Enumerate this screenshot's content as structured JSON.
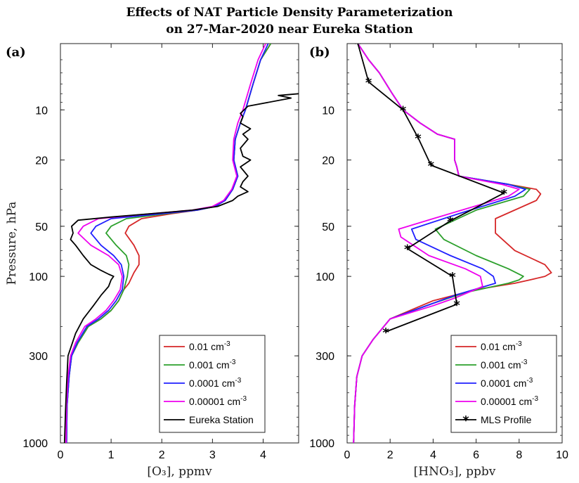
{
  "title_lines": [
    "Effects of NAT Particle Density Parameterization",
    "on 27-Mar-2020 near Eureka Station"
  ],
  "chart_data": [
    {
      "type": "line",
      "panel_label": "(a)",
      "xlabel": "[O₃], ppmv",
      "ylabel": "Pressure, hPa",
      "xlim": [
        0,
        4.7
      ],
      "ylim": [
        1000,
        4
      ],
      "yscale": "log",
      "xticks": [
        "0",
        "1",
        "2",
        "3",
        "4"
      ],
      "xtick_values": [
        0,
        1,
        2,
        3,
        4
      ],
      "yticks": [
        "10",
        "20",
        "50",
        "100",
        "300",
        "1000"
      ],
      "ytick_values": [
        10,
        20,
        50,
        100,
        300,
        1000
      ],
      "grid": false,
      "legend_position": "bottom-right",
      "series": [
        {
          "name": "0.01 cm^-3",
          "color": "#d62728",
          "marker": "none",
          "x": [
            4.15,
            3.95,
            3.8,
            3.65,
            3.55,
            3.45,
            3.42,
            3.5,
            3.4,
            3.25,
            3.05,
            2.7,
            2.2,
            1.6,
            1.35,
            1.28,
            1.45,
            1.55,
            1.55,
            1.45,
            1.35,
            1.25,
            1.15,
            1.0,
            0.8,
            0.55,
            0.35,
            0.22,
            0.17,
            0.13,
            0.12
          ],
          "y": [
            4,
            5,
            7,
            10,
            12,
            15,
            20,
            25,
            30,
            35,
            38,
            40,
            42,
            45,
            50,
            55,
            65,
            75,
            85,
            95,
            110,
            120,
            140,
            160,
            180,
            200,
            250,
            300,
            400,
            600,
            1000
          ]
        },
        {
          "name": "0.001 cm^-3",
          "color": "#2ca02c",
          "marker": "none",
          "x": [
            4.15,
            3.95,
            3.8,
            3.65,
            3.55,
            3.45,
            3.42,
            3.5,
            3.4,
            3.25,
            3.05,
            2.7,
            2.1,
            1.3,
            1.0,
            0.9,
            1.1,
            1.3,
            1.35,
            1.32,
            1.25,
            1.15,
            1.0,
            0.8,
            0.55,
            0.35,
            0.22,
            0.17,
            0.13,
            0.12
          ],
          "y": [
            4,
            5,
            7,
            10,
            12,
            15,
            20,
            25,
            30,
            35,
            38,
            40,
            42,
            45,
            50,
            55,
            65,
            75,
            85,
            100,
            120,
            140,
            160,
            180,
            200,
            250,
            300,
            400,
            600,
            1000
          ]
        },
        {
          "name": "0.0001 cm^-3",
          "color": "#1f1fff",
          "marker": "none",
          "x": [
            4.1,
            3.95,
            3.8,
            3.65,
            3.55,
            3.45,
            3.42,
            3.5,
            3.4,
            3.25,
            3.05,
            2.7,
            2.0,
            1.0,
            0.7,
            0.6,
            0.8,
            1.05,
            1.2,
            1.25,
            1.22,
            1.1,
            0.95,
            0.75,
            0.52,
            0.33,
            0.22,
            0.17,
            0.13,
            0.12
          ],
          "y": [
            4,
            5,
            7,
            10,
            12,
            15,
            20,
            25,
            30,
            35,
            38,
            40,
            42,
            45,
            50,
            55,
            65,
            75,
            85,
            100,
            120,
            140,
            160,
            180,
            200,
            250,
            300,
            400,
            600,
            1000
          ]
        },
        {
          "name": "0.00001 cm^-3",
          "color": "#ee00ee",
          "marker": "none",
          "x": [
            4.05,
            3.9,
            3.75,
            3.6,
            3.5,
            3.42,
            3.4,
            3.48,
            3.38,
            3.22,
            3.0,
            2.6,
            1.8,
            0.75,
            0.45,
            0.35,
            0.6,
            0.95,
            1.15,
            1.22,
            1.18,
            1.05,
            0.9,
            0.7,
            0.48,
            0.3,
            0.2,
            0.15,
            0.12,
            0.11
          ],
          "y": [
            4,
            5,
            7,
            10,
            12,
            15,
            20,
            25,
            30,
            35,
            38,
            40,
            42,
            45,
            50,
            55,
            65,
            75,
            85,
            100,
            120,
            140,
            160,
            180,
            200,
            250,
            300,
            400,
            600,
            1000
          ]
        },
        {
          "name": "Eureka Station",
          "color": "#000000",
          "marker": "none",
          "x": [
            4.7,
            4.3,
            4.55,
            3.7,
            3.55,
            3.6,
            3.55,
            3.75,
            3.6,
            3.7,
            3.55,
            3.6,
            3.75,
            3.55,
            3.7,
            3.6,
            3.55,
            3.7,
            3.5,
            3.4,
            3.1,
            2.6,
            1.8,
            1.0,
            0.35,
            0.22,
            0.25,
            0.2,
            0.3,
            0.45,
            0.6,
            0.8,
            0.95,
            1.05,
            1.0,
            0.95,
            0.8,
            0.65,
            0.45,
            0.3,
            0.15,
            0.12,
            0.1,
            0.08
          ],
          "y": [
            8,
            8.2,
            8.5,
            9.5,
            10.5,
            11,
            12,
            13,
            14,
            15,
            17,
            19,
            20,
            22,
            25,
            27,
            29,
            31,
            33,
            35,
            38,
            40,
            42,
            44,
            46,
            50,
            55,
            60,
            65,
            75,
            85,
            92,
            97,
            100,
            105,
            115,
            130,
            150,
            180,
            220,
            300,
            450,
            650,
            1000
          ]
        }
      ]
    },
    {
      "type": "line",
      "panel_label": "(b)",
      "xlabel": "[HNO₃], ppbv",
      "ylabel": "",
      "xlim": [
        0,
        10
      ],
      "ylim": [
        1000,
        4
      ],
      "yscale": "log",
      "xticks": [
        "0",
        "2",
        "4",
        "6",
        "8",
        "10"
      ],
      "xtick_values": [
        0,
        2,
        4,
        6,
        8,
        10
      ],
      "yticks": [
        "10",
        "20",
        "50",
        "100",
        "300",
        "1000"
      ],
      "ytick_values": [
        10,
        20,
        50,
        100,
        300,
        1000
      ],
      "grid": false,
      "legend_position": "bottom-right",
      "series": [
        {
          "name": "0.01 cm^-3",
          "color": "#d62728",
          "marker": "none",
          "x": [
            0.5,
            1.0,
            1.5,
            2.1,
            2.6,
            3.4,
            4.2,
            5.0,
            5.0,
            5.1,
            5.2,
            7.5,
            8.8,
            9.0,
            8.8,
            6.9,
            6.9,
            7.8,
            9.2,
            9.5,
            9.2,
            8.5,
            7.8,
            6.0,
            4.0,
            2.0,
            1.2,
            0.7,
            0.45,
            0.35,
            0.3
          ],
          "y": [
            4,
            5,
            6,
            8,
            10,
            12,
            14,
            15,
            20,
            22,
            25,
            28,
            30,
            32,
            35,
            45,
            55,
            70,
            85,
            95,
            100,
            105,
            110,
            120,
            140,
            180,
            240,
            300,
            400,
            600,
            1000
          ]
        },
        {
          "name": "0.001 cm^-3",
          "color": "#2ca02c",
          "marker": "none",
          "x": [
            0.5,
            1.0,
            1.5,
            2.1,
            2.6,
            3.4,
            4.2,
            5.0,
            5.0,
            5.1,
            5.2,
            7.5,
            8.5,
            8.2,
            6.0,
            4.1,
            4.5,
            6.0,
            7.5,
            8.2,
            8.0,
            7.5,
            5.5,
            4.0,
            2.0,
            1.2,
            0.7,
            0.45,
            0.35,
            0.3
          ],
          "y": [
            4,
            5,
            6,
            8,
            10,
            12,
            14,
            15,
            20,
            22,
            25,
            28,
            30,
            33,
            40,
            52,
            60,
            75,
            90,
            100,
            105,
            110,
            125,
            145,
            180,
            240,
            300,
            400,
            600,
            1000
          ]
        },
        {
          "name": "0.0001 cm^-3",
          "color": "#1f1fff",
          "marker": "none",
          "x": [
            0.5,
            1.0,
            1.5,
            2.1,
            2.6,
            3.4,
            4.2,
            5.0,
            5.0,
            5.1,
            5.2,
            7.5,
            8.3,
            7.8,
            5.2,
            3.0,
            3.2,
            4.8,
            6.3,
            6.8,
            6.9,
            5.0,
            4.0,
            2.0,
            1.2,
            0.7,
            0.45,
            0.35,
            0.3
          ],
          "y": [
            4,
            5,
            6,
            8,
            10,
            12,
            14,
            15,
            20,
            22,
            25,
            28,
            30,
            33,
            42,
            52,
            60,
            75,
            90,
            100,
            110,
            130,
            145,
            180,
            240,
            300,
            400,
            600,
            1000
          ]
        },
        {
          "name": "0.00001 cm^-3",
          "color": "#ee00ee",
          "marker": "none",
          "x": [
            0.5,
            1.0,
            1.5,
            2.1,
            2.6,
            3.4,
            4.2,
            5.0,
            5.0,
            5.1,
            5.2,
            7.2,
            8.0,
            7.5,
            4.0,
            2.4,
            2.5,
            3.8,
            5.5,
            6.2,
            6.3,
            5.0,
            4.0,
            2.0,
            1.2,
            0.7,
            0.45,
            0.35,
            0.3
          ],
          "y": [
            4,
            5,
            6,
            8,
            10,
            12,
            14,
            15,
            20,
            22,
            25,
            28,
            30,
            33,
            45,
            52,
            58,
            75,
            90,
            100,
            115,
            135,
            150,
            180,
            240,
            300,
            400,
            600,
            1000
          ]
        },
        {
          "name": "MLS Profile",
          "color": "#000000",
          "marker": "asterisk",
          "x": [
            0.5,
            1.0,
            2.6,
            3.3,
            3.9,
            7.3,
            4.8,
            2.8,
            4.9,
            5.1,
            1.8
          ],
          "y": [
            4,
            6.8,
            10,
            14.7,
            21.5,
            31.6,
            46.4,
            68.1,
            100,
            147,
            215
          ]
        }
      ]
    }
  ]
}
